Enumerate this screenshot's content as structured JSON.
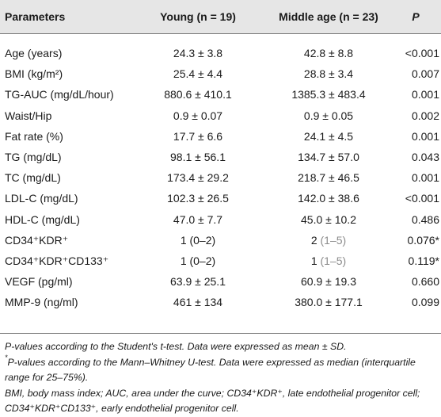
{
  "header": {
    "parameters": "Parameters",
    "young": "Young (n = 19)",
    "middle": "Middle age (n = 23)",
    "p": "P"
  },
  "rows": [
    {
      "label": "Age (years)",
      "young": "24.3 ± 3.8",
      "middle": "42.8 ± 8.8",
      "p": "<0.001"
    },
    {
      "label": "BMI (kg/m²)",
      "young": "25.4 ± 4.4",
      "middle": "28.8 ± 3.4",
      "p": "0.007"
    },
    {
      "label": "TG-AUC (mg/dL/hour)",
      "young": "880.6 ± 410.1",
      "middle": "1385.3 ± 483.4",
      "p": "0.001"
    },
    {
      "label": "Waist/Hip",
      "young": "0.9 ± 0.07",
      "middle": "0.9 ± 0.05",
      "p": "0.002"
    },
    {
      "label": "Fat rate (%)",
      "young": "17.7 ± 6.6",
      "middle": "24.1 ± 4.5",
      "p": "0.001"
    },
    {
      "label": "TG (mg/dL)",
      "young": "98.1 ± 56.1",
      "middle": "134.7 ± 57.0",
      "p": "0.043"
    },
    {
      "label": "TC (mg/dL)",
      "young": "173.4 ± 29.2",
      "middle": "218.7 ± 46.5",
      "p": "0.001"
    },
    {
      "label": "LDL-C (mg/dL)",
      "young": "102.3 ± 26.5",
      "middle": "142.0 ± 38.6",
      "p": "<0.001"
    },
    {
      "label": "HDL-C (mg/dL)",
      "young": "47.0 ± 7.7",
      "middle": "45.0 ± 10.2",
      "p": "0.486"
    },
    {
      "label": "CD34⁺KDR⁺",
      "young": "1 (0–2)",
      "middle_value": "2",
      "middle_range": "(1–5)",
      "p": "0.076*"
    },
    {
      "label": "CD34⁺KDR⁺CD133⁺",
      "young": "1 (0–2)",
      "middle_value": "1",
      "middle_range": "(1–5)",
      "p": "0.119*"
    },
    {
      "label": "VEGF (pg/ml)",
      "young": "63.9 ± 25.1",
      "middle": "60.9 ± 19.3",
      "p": "0.660"
    },
    {
      "label": "MMP-9 (ng/ml)",
      "young": "461 ± 134",
      "middle": "380.0 ± 177.1",
      "p": "0.099"
    }
  ],
  "footnotes": {
    "note1": "P-values according to the Student's t-test. Data were expressed as mean ± SD.",
    "note2_mark": "*",
    "note2": "P-values according to the Mann–Whitney U-test. Data were expressed as median (interquartile range for 25–75%).",
    "note3": "BMI, body mass index; AUC, area under the curve; CD34⁺KDR⁺, late endothelial progenitor cell; CD34⁺KDR⁺CD133⁺, early endothelial progenitor cell."
  }
}
